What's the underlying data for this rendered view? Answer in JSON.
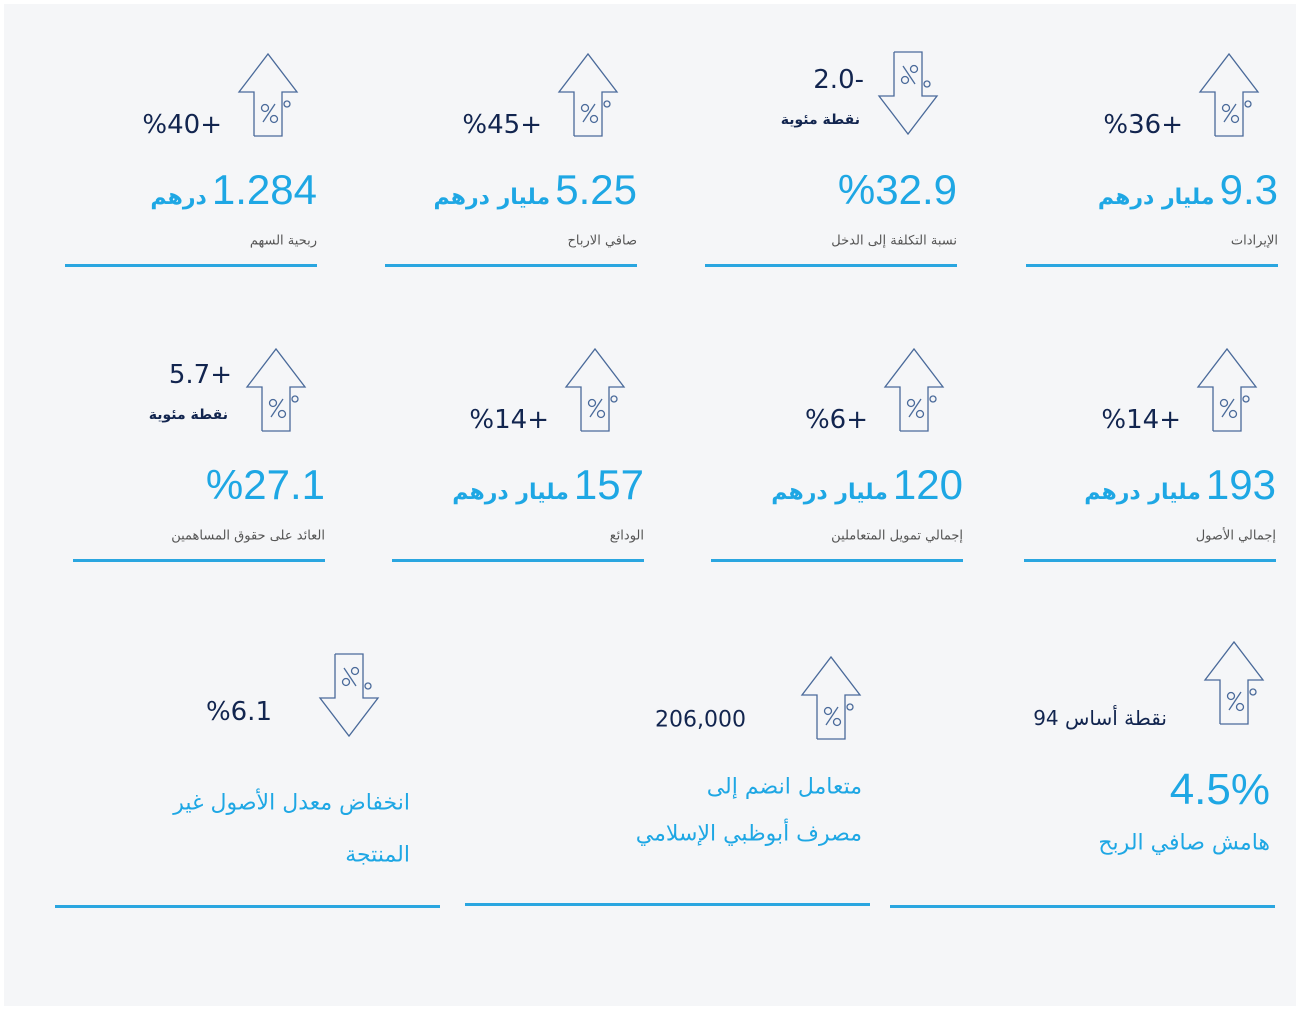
{
  "cards": [
    {
      "trend": "up",
      "change": "%36+",
      "value": {
        "number": "9.3",
        "unit": "مليار درهم"
      },
      "label": "الإيرادات"
    },
    {
      "trend": "down",
      "change": "2.0-",
      "change_note": "نقطة مئوية",
      "value": {
        "number": "%32.9"
      },
      "label": "نسبة التكلفة إلى الدخل"
    },
    {
      "trend": "up",
      "change": "%45+",
      "value": {
        "number": "5.25",
        "unit": "مليار درهم"
      },
      "label": "صافي الارباح"
    },
    {
      "trend": "up",
      "change": "%40+",
      "value": {
        "number": "1.284",
        "unit": "درهم"
      },
      "label": "ربحية السهم"
    },
    {
      "trend": "up",
      "change": "%14+",
      "value": {
        "number": "193",
        "unit": "مليار درهم"
      },
      "label": "إجمالي الأصول"
    },
    {
      "trend": "up",
      "change": "%6+",
      "value": {
        "number": "120",
        "unit": "مليار درهم"
      },
      "label": "إجمالي تمويل المتعاملين"
    },
    {
      "trend": "up",
      "change": "%14+",
      "value": {
        "number": "157",
        "unit": "مليار درهم"
      },
      "label": "الودائع"
    },
    {
      "trend": "up",
      "change": "5.7+",
      "change_note": "نقطة مئوية",
      "value": {
        "number": "%27.1"
      },
      "label": "العائد على حقوق المساهمين"
    },
    {
      "trend": "up",
      "change": "نقطة أساس 94",
      "value": {
        "number": "4.5%"
      },
      "label_lines": [
        "هامش صافي الربح"
      ]
    },
    {
      "trend": "up",
      "change": "206,000",
      "label_lines": [
        "متعامل انضم إلى",
        "مصرف أبوظبي الإسلامي"
      ]
    },
    {
      "trend": "down",
      "change": "%6.1",
      "label_lines": [
        "انخفاض معدل الأصول غير",
        "المنتجة"
      ]
    }
  ]
}
